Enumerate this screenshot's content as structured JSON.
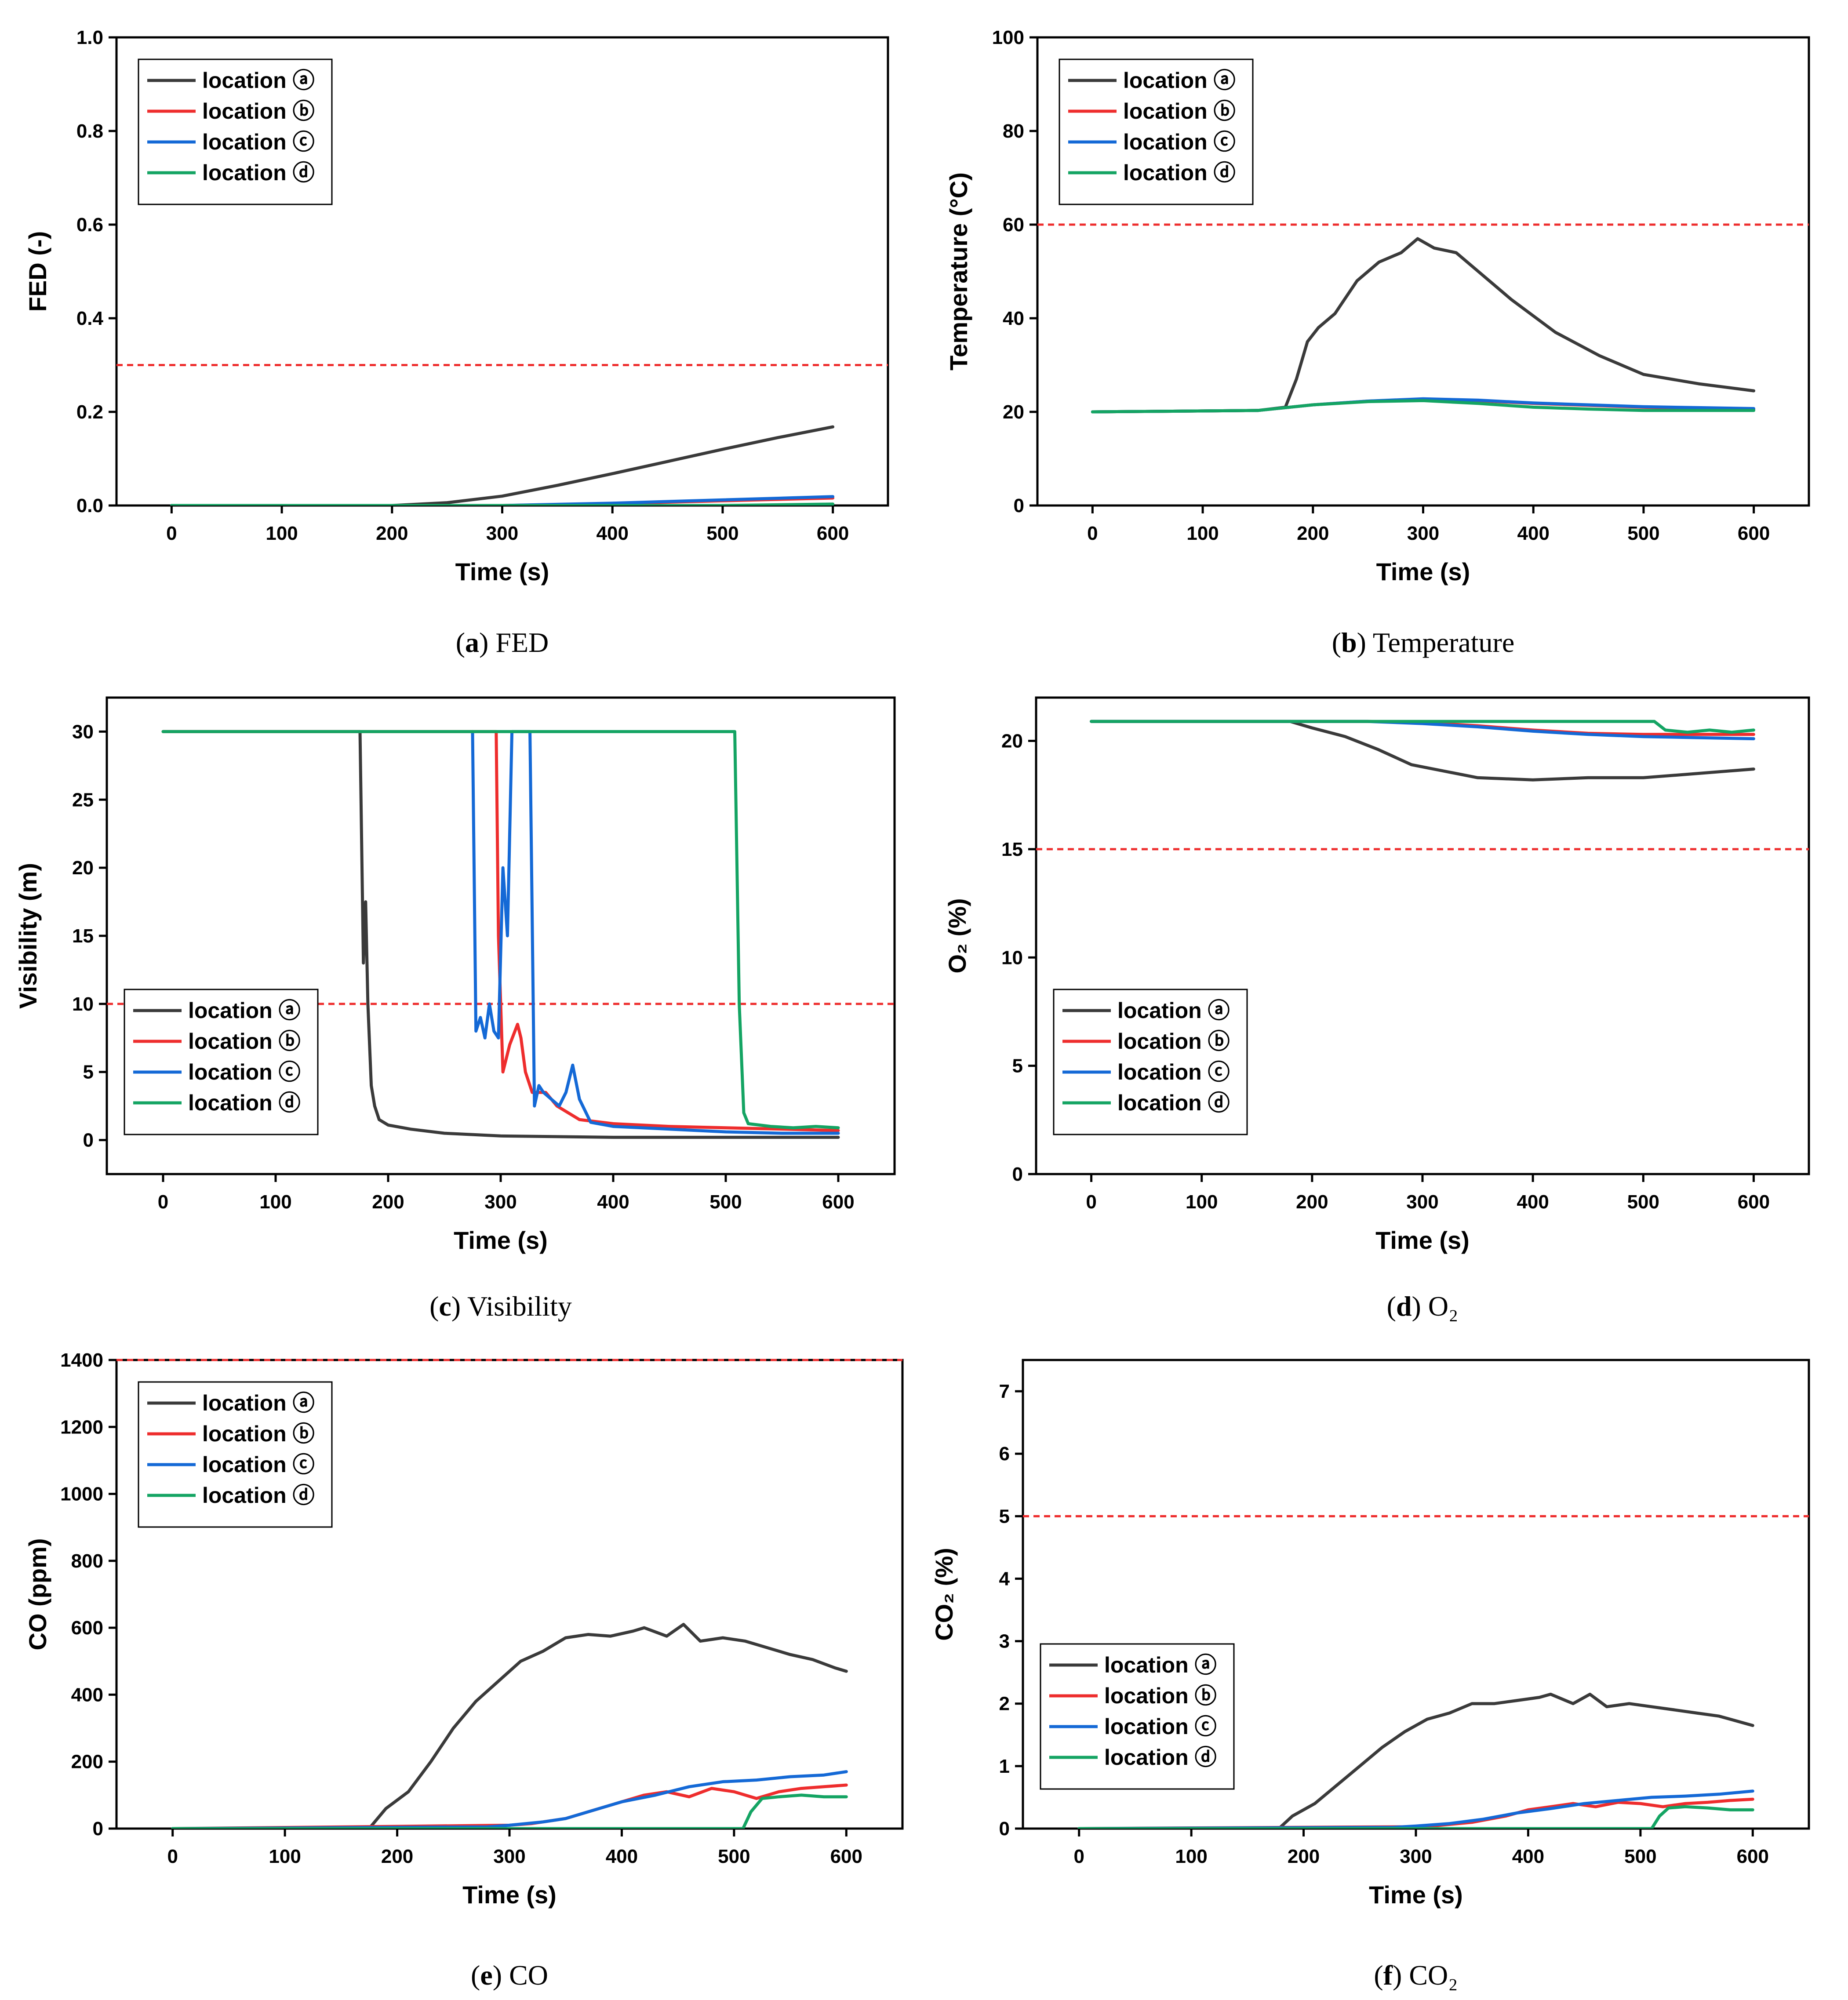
{
  "colors": {
    "location_a": "#3a3a3a",
    "location_b": "#ee2d2d",
    "location_c": "#1469d6",
    "location_d": "#14a463",
    "threshold": "#ee2d2d"
  },
  "legend_labels": [
    "location ⓐ",
    "location ⓑ",
    "location ⓒ",
    "location ⓓ"
  ],
  "chart_data": [
    {
      "id": "a",
      "type": "line",
      "caption_letter": "a",
      "caption_text": " FED",
      "xlabel": "Time (s)",
      "ylabel": "FED (-)",
      "xlim": [
        -50,
        650
      ],
      "ylim": [
        0,
        1.0
      ],
      "xticks": [
        0,
        100,
        200,
        300,
        400,
        500,
        600
      ],
      "yticks": [
        0.0,
        0.2,
        0.4,
        0.6,
        0.8,
        1.0
      ],
      "ytick_labels": [
        "0.0",
        "0.2",
        "0.4",
        "0.6",
        "0.8",
        "1.0"
      ],
      "threshold": 0.3,
      "legend_position": "top-left",
      "series": [
        {
          "name": "location ⓐ",
          "x": [
            0,
            200,
            250,
            300,
            350,
            400,
            450,
            500,
            550,
            600
          ],
          "y": [
            0,
            0,
            0.006,
            0.02,
            0.043,
            0.068,
            0.094,
            0.12,
            0.145,
            0.168
          ]
        },
        {
          "name": "location ⓑ",
          "x": [
            0,
            300,
            400,
            500,
            600
          ],
          "y": [
            0,
            0,
            0.004,
            0.01,
            0.016
          ]
        },
        {
          "name": "location ⓒ",
          "x": [
            0,
            300,
            400,
            500,
            600
          ],
          "y": [
            0,
            0,
            0.005,
            0.012,
            0.019
          ]
        },
        {
          "name": "location ⓓ",
          "x": [
            0,
            500,
            600
          ],
          "y": [
            0,
            0,
            0.003
          ]
        }
      ]
    },
    {
      "id": "b",
      "type": "line",
      "caption_letter": "b",
      "caption_text": " Temperature",
      "xlabel": "Time (s)",
      "ylabel": "Temperature (°C)",
      "xlim": [
        -50,
        650
      ],
      "ylim": [
        0,
        100
      ],
      "xticks": [
        0,
        100,
        200,
        300,
        400,
        500,
        600
      ],
      "yticks": [
        0,
        20,
        40,
        60,
        80,
        100
      ],
      "ytick_labels": [
        "0",
        "20",
        "40",
        "60",
        "80",
        "100"
      ],
      "threshold": 60,
      "legend_position": "top-left",
      "series": [
        {
          "name": "location ⓐ",
          "x": [
            0,
            150,
            175,
            185,
            195,
            205,
            220,
            240,
            260,
            280,
            295,
            310,
            330,
            350,
            380,
            420,
            460,
            500,
            550,
            600
          ],
          "y": [
            20,
            20.3,
            21,
            27,
            35,
            38,
            41,
            48,
            52,
            54,
            57,
            55,
            54,
            50,
            44,
            37,
            32,
            28,
            26,
            24.5
          ]
        },
        {
          "name": "location ⓑ",
          "x": [
            0,
            150,
            200,
            250,
            300,
            350,
            400,
            500,
            600
          ],
          "y": [
            20,
            20.3,
            21.5,
            22.3,
            22.6,
            22.4,
            21.8,
            21,
            20.5
          ]
        },
        {
          "name": "location ⓒ",
          "x": [
            0,
            150,
            200,
            250,
            300,
            350,
            400,
            500,
            600
          ],
          "y": [
            20,
            20.3,
            21.5,
            22.3,
            22.8,
            22.5,
            21.9,
            21.1,
            20.7
          ]
        },
        {
          "name": "location ⓓ",
          "x": [
            0,
            150,
            200,
            250,
            300,
            350,
            400,
            450,
            500,
            600
          ],
          "y": [
            20,
            20.3,
            21.5,
            22.2,
            22.4,
            21.8,
            21,
            20.6,
            20.3,
            20.3
          ]
        }
      ]
    },
    {
      "id": "c",
      "type": "line",
      "caption_letter": "c",
      "caption_text": " Visibility",
      "xlabel": "Time (s)",
      "ylabel": "Visibility (m)",
      "xlim": [
        -50,
        650
      ],
      "ylim": [
        -2.5,
        32.5
      ],
      "xticks": [
        0,
        100,
        200,
        300,
        400,
        500,
        600
      ],
      "yticks": [
        0,
        5,
        10,
        15,
        20,
        25,
        30
      ],
      "ytick_labels": [
        "0",
        "5",
        "10",
        "15",
        "20",
        "25",
        "30"
      ],
      "threshold": 10,
      "legend_position": "bottom-left",
      "series": [
        {
          "name": "location ⓐ",
          "x": [
            0,
            175,
            178,
            180,
            182,
            185,
            188,
            192,
            200,
            220,
            250,
            300,
            400,
            600
          ],
          "y": [
            30,
            30,
            13,
            17.5,
            10,
            4,
            2.5,
            1.5,
            1.1,
            0.8,
            0.5,
            0.3,
            0.2,
            0.2
          ]
        },
        {
          "name": "location ⓑ",
          "x": [
            0,
            296,
            298,
            302,
            308,
            315,
            318,
            322,
            328,
            340,
            350,
            370,
            400,
            450,
            500,
            550,
            600
          ],
          "y": [
            30,
            30,
            15,
            5,
            7,
            8.5,
            7.5,
            5,
            3.5,
            3.5,
            2.5,
            1.5,
            1.2,
            1,
            0.9,
            0.8,
            0.7
          ]
        },
        {
          "name": "location ⓒ",
          "x": [
            275,
            278,
            282,
            286,
            290,
            294,
            298,
            302,
            306,
            310,
            312,
            318,
            326,
            330,
            334,
            338,
            345,
            352,
            358,
            364,
            370,
            380,
            400,
            450,
            500,
            550,
            600
          ],
          "y": [
            30,
            8,
            9,
            7.5,
            10,
            8,
            7.5,
            20,
            15,
            30,
            30,
            30,
            30,
            2.5,
            4,
            3.5,
            3,
            2.5,
            3.5,
            5.5,
            3,
            1.3,
            1,
            0.8,
            0.6,
            0.5,
            0.5
          ]
        },
        {
          "name": "location ⓓ",
          "x": [
            0,
            508,
            512,
            516,
            520,
            540,
            560,
            580,
            600
          ],
          "y": [
            30,
            30,
            10,
            2,
            1.2,
            1,
            0.9,
            1,
            0.9
          ]
        }
      ]
    },
    {
      "id": "d",
      "type": "line",
      "caption_letter": "d",
      "caption_text": " O₂",
      "xlabel": "Time (s)",
      "ylabel": "O₂ (%)",
      "xlim": [
        -50,
        650
      ],
      "ylim": [
        0,
        22
      ],
      "xticks": [
        0,
        100,
        200,
        300,
        400,
        500,
        600
      ],
      "yticks": [
        0,
        5,
        10,
        15,
        20
      ],
      "ytick_labels": [
        "0",
        "5",
        "10",
        "15",
        "20"
      ],
      "threshold": 15,
      "legend_position": "bottom-left",
      "series": [
        {
          "name": "location ⓐ",
          "x": [
            0,
            180,
            200,
            230,
            260,
            290,
            320,
            350,
            400,
            450,
            500,
            550,
            600
          ],
          "y": [
            20.9,
            20.9,
            20.6,
            20.2,
            19.6,
            18.9,
            18.6,
            18.3,
            18.2,
            18.3,
            18.3,
            18.5,
            18.7
          ]
        },
        {
          "name": "location ⓑ",
          "x": [
            0,
            250,
            300,
            350,
            400,
            450,
            500,
            550,
            600
          ],
          "y": [
            20.9,
            20.9,
            20.85,
            20.7,
            20.5,
            20.35,
            20.3,
            20.3,
            20.3
          ]
        },
        {
          "name": "location ⓒ",
          "x": [
            0,
            250,
            300,
            350,
            400,
            450,
            500,
            550,
            600
          ],
          "y": [
            20.9,
            20.9,
            20.8,
            20.65,
            20.45,
            20.3,
            20.2,
            20.15,
            20.1
          ]
        },
        {
          "name": "location ⓓ",
          "x": [
            0,
            510,
            520,
            540,
            560,
            580,
            600
          ],
          "y": [
            20.9,
            20.9,
            20.5,
            20.4,
            20.5,
            20.4,
            20.5
          ]
        }
      ]
    },
    {
      "id": "e",
      "type": "line",
      "caption_letter": "e",
      "caption_text": " CO",
      "xlabel": "Time (s)",
      "ylabel": "CO (ppm)",
      "xlim": [
        -50,
        650
      ],
      "ylim": [
        0,
        1400
      ],
      "xticks": [
        0,
        100,
        200,
        300,
        400,
        500,
        600
      ],
      "yticks": [
        0,
        200,
        400,
        600,
        800,
        1000,
        1200,
        1400
      ],
      "ytick_labels": [
        "0",
        "200",
        "400",
        "600",
        "800",
        "1000",
        "1200",
        "1400"
      ],
      "threshold": 1400,
      "legend_position": "top-left",
      "series": [
        {
          "name": "location ⓐ",
          "x": [
            0,
            175,
            190,
            210,
            230,
            250,
            270,
            290,
            310,
            330,
            350,
            370,
            390,
            410,
            420,
            440,
            455,
            470,
            490,
            510,
            530,
            550,
            570,
            590,
            600
          ],
          "y": [
            0,
            0,
            60,
            110,
            200,
            300,
            380,
            440,
            500,
            530,
            570,
            580,
            575,
            590,
            600,
            575,
            610,
            560,
            570,
            560,
            540,
            520,
            505,
            480,
            470
          ]
        },
        {
          "name": "location ⓑ",
          "x": [
            0,
            300,
            320,
            350,
            380,
            400,
            420,
            440,
            460,
            480,
            500,
            520,
            540,
            560,
            580,
            600
          ],
          "y": [
            0,
            10,
            15,
            30,
            60,
            80,
            100,
            110,
            95,
            120,
            110,
            90,
            110,
            120,
            125,
            130
          ]
        },
        {
          "name": "location ⓒ",
          "x": [
            0,
            280,
            300,
            330,
            350,
            380,
            400,
            430,
            460,
            490,
            520,
            550,
            580,
            600
          ],
          "y": [
            0,
            5,
            10,
            20,
            30,
            60,
            80,
            100,
            125,
            140,
            145,
            155,
            160,
            170
          ]
        },
        {
          "name": "location ⓓ",
          "x": [
            0,
            508,
            515,
            525,
            540,
            560,
            580,
            600
          ],
          "y": [
            0,
            0,
            50,
            90,
            95,
            100,
            95,
            95
          ]
        }
      ]
    },
    {
      "id": "f",
      "type": "line",
      "caption_letter": "f",
      "caption_text": " CO₂",
      "xlabel": "Time (s)",
      "ylabel": "CO₂ (%)",
      "xlim": [
        -50,
        650
      ],
      "ylim": [
        0,
        7.5
      ],
      "xticks": [
        0,
        100,
        200,
        300,
        400,
        500,
        600
      ],
      "yticks": [
        0,
        1,
        2,
        3,
        4,
        5,
        6,
        7
      ],
      "ytick_labels": [
        "0",
        "1",
        "2",
        "3",
        "4",
        "5",
        "6",
        "7"
      ],
      "threshold": 5,
      "legend_position": "bottom-left",
      "series": [
        {
          "name": "location ⓐ",
          "x": [
            0,
            178,
            190,
            210,
            230,
            250,
            270,
            290,
            310,
            330,
            350,
            370,
            390,
            410,
            420,
            440,
            455,
            470,
            490,
            510,
            530,
            550,
            570,
            590,
            600
          ],
          "y": [
            0,
            0,
            0.2,
            0.4,
            0.7,
            1.0,
            1.3,
            1.55,
            1.75,
            1.85,
            2.0,
            2.0,
            2.05,
            2.1,
            2.15,
            2.0,
            2.15,
            1.95,
            2.0,
            1.95,
            1.9,
            1.85,
            1.8,
            1.7,
            1.65
          ]
        },
        {
          "name": "location ⓑ",
          "x": [
            0,
            300,
            320,
            350,
            380,
            400,
            420,
            440,
            460,
            480,
            500,
            520,
            540,
            560,
            580,
            600
          ],
          "y": [
            0,
            0.03,
            0.05,
            0.1,
            0.2,
            0.3,
            0.35,
            0.4,
            0.35,
            0.42,
            0.4,
            0.35,
            0.4,
            0.42,
            0.45,
            0.47
          ]
        },
        {
          "name": "location ⓒ",
          "x": [
            0,
            280,
            300,
            330,
            360,
            390,
            420,
            450,
            480,
            510,
            540,
            570,
            600
          ],
          "y": [
            0,
            0.02,
            0.04,
            0.08,
            0.15,
            0.25,
            0.32,
            0.4,
            0.45,
            0.5,
            0.52,
            0.55,
            0.6
          ]
        },
        {
          "name": "location ⓓ",
          "x": [
            0,
            510,
            517,
            525,
            540,
            560,
            580,
            600
          ],
          "y": [
            0,
            0,
            0.2,
            0.33,
            0.35,
            0.33,
            0.3,
            0.3
          ]
        }
      ]
    }
  ]
}
